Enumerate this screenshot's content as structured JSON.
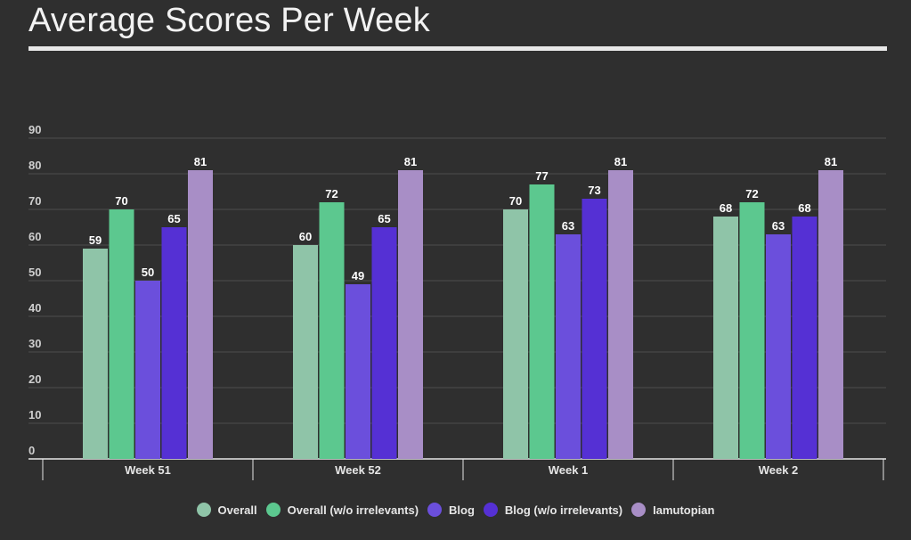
{
  "page": {
    "title": "Average Scores Per Week",
    "background": "#2f2f2f"
  },
  "chart_data": {
    "type": "bar",
    "title": "Average Scores Per Week",
    "xlabel": "",
    "ylabel": "",
    "ylim": [
      0,
      90
    ],
    "yticks": [
      0,
      10,
      20,
      30,
      40,
      50,
      60,
      70,
      80,
      90
    ],
    "grid": true,
    "legend_position": "bottom",
    "categories": [
      "Week 51",
      "Week 52",
      "Week 1",
      "Week 2"
    ],
    "series": [
      {
        "name": "Overall",
        "color": "#8fc4a8",
        "values": [
          59,
          60,
          70,
          68
        ]
      },
      {
        "name": "Overall (w/o irrelevants)",
        "color": "#5cc88f",
        "values": [
          70,
          72,
          77,
          72
        ]
      },
      {
        "name": "Blog",
        "color": "#6b4fdc",
        "values": [
          50,
          49,
          63,
          63
        ]
      },
      {
        "name": "Blog (w/o irrelevants)",
        "color": "#5530d4",
        "values": [
          65,
          65,
          73,
          68
        ]
      },
      {
        "name": "Iamutopian",
        "color": "#a88ec6",
        "values": [
          81,
          81,
          81,
          81
        ]
      }
    ]
  }
}
